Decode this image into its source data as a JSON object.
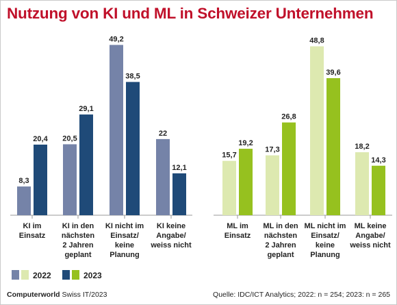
{
  "title": "Nutzung von KI und ML in Schweizer Unternehmen",
  "footer": {
    "brand": "Computerworld",
    "edition": "Swiss IT/2023",
    "source": "Quelle: IDC/ICT Analytics; 2022: n = 254; 2023: n = 265"
  },
  "colors": {
    "ki_2022": "#7583a8",
    "ki_2023": "#1f4a78",
    "ml_2022": "#dde9b0",
    "ml_2023": "#96c11f"
  },
  "chart_data": {
    "type": "bar",
    "title": "Nutzung von KI und ML in Schweizer Unternehmen",
    "legend": {
      "placement": "bottom-left",
      "entries": [
        "2022",
        "2023"
      ]
    },
    "grid": false,
    "ylim": [
      0,
      50
    ],
    "groups": [
      {
        "name": "KI",
        "categories": [
          [
            "KI im",
            "Einsatz"
          ],
          [
            "KI in den",
            "nächsten",
            "2 Jahren",
            "geplant"
          ],
          [
            "KI nicht im",
            "Einsatz/",
            "keine",
            "Planung"
          ],
          [
            "KI keine",
            "Angabe/",
            "weiss nicht"
          ]
        ],
        "series": [
          {
            "name": "2022",
            "values": [
              8.3,
              20.5,
              49.2,
              22
            ],
            "labels": [
              "8,3",
              "20,5",
              "49,2",
              "22"
            ]
          },
          {
            "name": "2023",
            "values": [
              20.4,
              29.1,
              38.5,
              12.1
            ],
            "labels": [
              "20,4",
              "29,1",
              "38,5",
              "12,1"
            ]
          }
        ]
      },
      {
        "name": "ML",
        "categories": [
          [
            "ML im",
            "Einsatz"
          ],
          [
            "ML in den",
            "nächsten",
            "2 Jahren",
            "geplant"
          ],
          [
            "ML nicht im",
            "Einsatz/",
            "keine",
            "Planung"
          ],
          [
            "ML keine",
            "Angabe/",
            "weiss nicht"
          ]
        ],
        "series": [
          {
            "name": "2022",
            "values": [
              15.7,
              17.3,
              48.8,
              18.2
            ],
            "labels": [
              "15,7",
              "17,3",
              "48,8",
              "18,2"
            ]
          },
          {
            "name": "2023",
            "values": [
              19.2,
              26.8,
              39.6,
              14.3
            ],
            "labels": [
              "19,2",
              "26,8",
              "39,6",
              "14,3"
            ]
          }
        ]
      }
    ]
  }
}
